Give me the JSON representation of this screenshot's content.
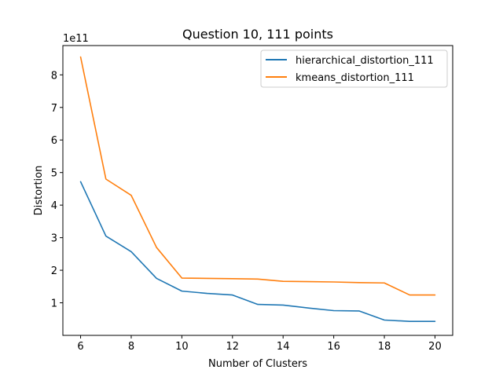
{
  "chart_data": {
    "type": "line",
    "title": "Question 10, 111 points",
    "xlabel": "Number of Clusters",
    "ylabel": "Distortion",
    "y_scale_label": "1e11",
    "xlim": [
      5.3,
      20.7
    ],
    "ylim": [
      0.0,
      8.9
    ],
    "xticks": [
      6,
      8,
      10,
      12,
      14,
      16,
      18,
      20
    ],
    "yticks": [
      1,
      2,
      3,
      4,
      5,
      6,
      7,
      8
    ],
    "grid": false,
    "legend_position": "top-right",
    "x": [
      6,
      7,
      8,
      9,
      10,
      11,
      12,
      13,
      14,
      15,
      16,
      17,
      18,
      19,
      20
    ],
    "series": [
      {
        "name": "hierarchical_distortion_111",
        "color": "#1f77b4",
        "values": [
          4.72,
          3.05,
          2.57,
          1.75,
          1.36,
          1.29,
          1.24,
          0.95,
          0.93,
          0.84,
          0.76,
          0.75,
          0.47,
          0.43,
          0.43
        ]
      },
      {
        "name": "kmeans_distortion_111",
        "color": "#ff7f0e",
        "values": [
          8.55,
          4.8,
          4.3,
          2.7,
          1.76,
          1.75,
          1.74,
          1.73,
          1.66,
          1.65,
          1.64,
          1.62,
          1.61,
          1.24,
          1.24
        ]
      }
    ]
  }
}
